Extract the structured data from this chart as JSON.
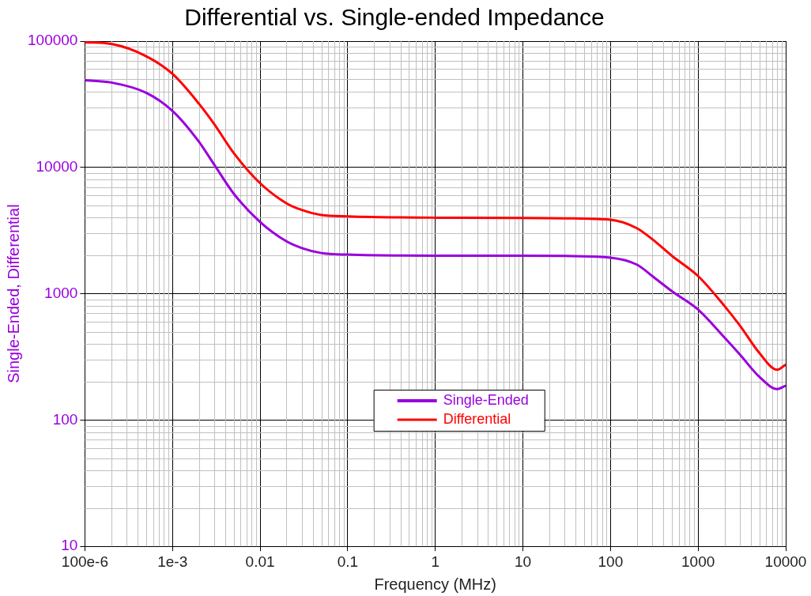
{
  "chart_data": {
    "type": "line",
    "title": "Differential vs. Single-ended Impedance",
    "xlabel": "Frequency (MHz)",
    "ylabel": "Single-Ended, Differential",
    "x": [
      0.0001,
      0.0002,
      0.0005,
      0.001,
      0.002,
      0.003,
      0.005,
      0.01,
      0.02,
      0.03,
      0.05,
      0.1,
      1,
      10,
      30,
      100,
      200,
      300,
      500,
      1000,
      2000,
      3000,
      5000,
      8000,
      10000
    ],
    "series": [
      {
        "name": "Single-Ended",
        "color": "#9900dd",
        "values": [
          49000,
          47000,
          39000,
          28000,
          16000,
          10500,
          6200,
          3700,
          2600,
          2300,
          2100,
          2040,
          2000,
          2000,
          1990,
          1930,
          1700,
          1380,
          1050,
          750,
          450,
          330,
          220,
          176,
          187
        ]
      },
      {
        "name": "Differential",
        "color": "#ff0000",
        "values": [
          98000,
          95000,
          76000,
          55000,
          32000,
          22000,
          13000,
          7500,
          5200,
          4600,
          4200,
          4100,
          4000,
          3980,
          3950,
          3850,
          3300,
          2700,
          2000,
          1380,
          800,
          560,
          340,
          250,
          275
        ]
      }
    ],
    "log": "xy",
    "xlim": [
      0.0001,
      10000
    ],
    "ylim": [
      10,
      100000
    ],
    "xticks": [
      {
        "value": 0.0001,
        "label": "100e-6"
      },
      {
        "value": 0.001,
        "label": "1e-3"
      },
      0.01,
      0.1,
      1,
      10,
      100,
      1000,
      10000
    ],
    "yticks": [
      10,
      100,
      1000,
      10000,
      100000
    ],
    "grid": true,
    "legend": "bottom",
    "marker": "none",
    "line_style": "solid"
  }
}
